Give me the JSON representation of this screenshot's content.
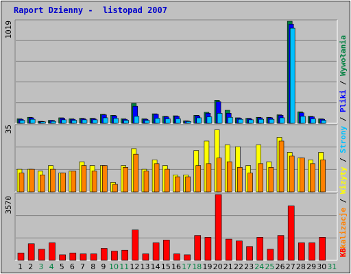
{
  "header": {
    "title": "Raport Dzienny -  listopad 2007"
  },
  "legend": {
    "visits": "Wywołania",
    "files": "Pliki",
    "pages": "Strony",
    "sites": "Lokalizacje",
    "visitors": "Wizyty",
    "kb": "KB",
    "separator": " / "
  },
  "colors": {
    "hits": "#008040",
    "files": "#0000ff",
    "pages": "#00c0ff",
    "visits": "#ffff00",
    "sites": "#ff8000",
    "kbytes": "#ff0000",
    "weekend": "#008040",
    "weekday": "#000000"
  },
  "chart_data": [
    {
      "type": "bar",
      "categories": [
        "1",
        "2",
        "3",
        "4",
        "5",
        "6",
        "7",
        "8",
        "9",
        "10",
        "11",
        "12",
        "13",
        "14",
        "15",
        "16",
        "17",
        "18",
        "19",
        "20",
        "21",
        "22",
        "23",
        "24",
        "25",
        "26",
        "27",
        "28",
        "29",
        "30",
        "31"
      ],
      "weekend": [
        3,
        4,
        10,
        11,
        17,
        18,
        24,
        25,
        31
      ],
      "ymax_label": "1019",
      "ylim": [
        0,
        1019
      ],
      "series": [
        {
          "name": "Wywołania",
          "values": [
            45,
            60,
            20,
            30,
            55,
            45,
            50,
            50,
            90,
            80,
            45,
            200,
            45,
            95,
            70,
            75,
            25,
            80,
            110,
            230,
            130,
            55,
            50,
            60,
            60,
            85,
            1019,
            115,
            70,
            45,
            0
          ]
        },
        {
          "name": "Pliki",
          "values": [
            40,
            55,
            18,
            28,
            50,
            40,
            45,
            45,
            85,
            75,
            40,
            170,
            40,
            90,
            65,
            70,
            22,
            75,
            100,
            215,
            100,
            50,
            45,
            55,
            55,
            80,
            990,
            105,
            65,
            40,
            0
          ]
        },
        {
          "name": "Strony",
          "values": [
            30,
            40,
            15,
            20,
            35,
            30,
            35,
            35,
            55,
            50,
            30,
            70,
            30,
            50,
            45,
            45,
            18,
            55,
            65,
            100,
            60,
            40,
            35,
            40,
            40,
            55,
            950,
            70,
            45,
            30,
            0
          ]
        }
      ]
    },
    {
      "type": "bar",
      "ymax_label": "35",
      "ylim": [
        0,
        35
      ],
      "series": [
        {
          "name": "Wizyty",
          "values": [
            12,
            12,
            11,
            14,
            10,
            11,
            16,
            14,
            14,
            5,
            14,
            23,
            12,
            17,
            14,
            9,
            9,
            22,
            27,
            33,
            25,
            24,
            14,
            25,
            16,
            29,
            21,
            18,
            17,
            21,
            0
          ]
        },
        {
          "name": "Lokalizacje",
          "values": [
            10,
            12,
            9,
            12,
            10,
            11,
            14,
            11,
            14,
            4,
            13,
            20,
            11,
            15,
            12,
            8,
            8,
            14,
            15,
            18,
            16,
            13,
            10,
            15,
            13,
            27,
            19,
            18,
            15,
            17,
            0
          ]
        }
      ]
    },
    {
      "type": "bar",
      "ymax_label": "3570",
      "ylim": [
        0,
        3570
      ],
      "series": [
        {
          "name": "KB",
          "values": [
            400,
            900,
            600,
            950,
            300,
            400,
            350,
            350,
            650,
            500,
            550,
            1650,
            350,
            950,
            1100,
            350,
            300,
            1350,
            1250,
            3570,
            1150,
            1050,
            750,
            1250,
            600,
            1350,
            2950,
            950,
            950,
            1250,
            0
          ]
        }
      ]
    }
  ]
}
